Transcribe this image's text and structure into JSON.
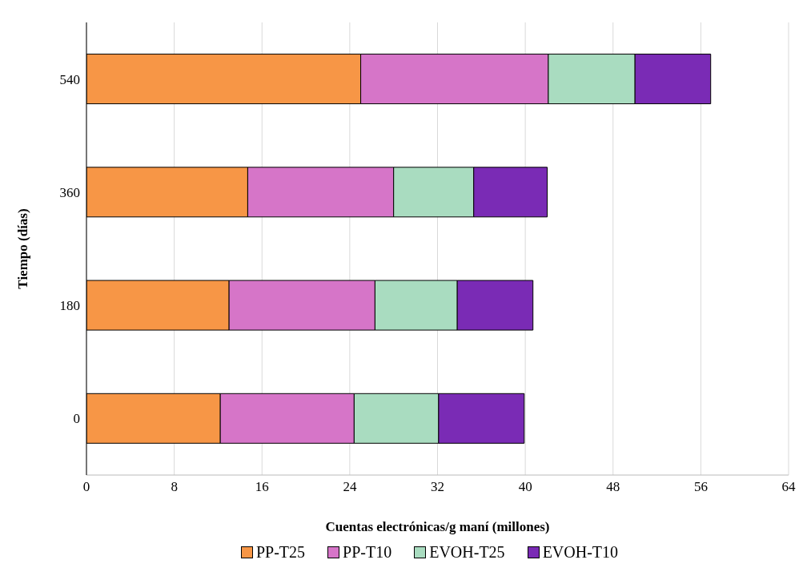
{
  "chart_data": {
    "type": "bar",
    "orientation": "horizontal",
    "stacked": true,
    "xlabel": "Cuentas electrónicas/g maní (millones)",
    "ylabel": "Tiempo (días)",
    "categories": [
      "540",
      "360",
      "180",
      "0"
    ],
    "series": [
      {
        "name": "PP-T25",
        "color": "#f79646",
        "values": [
          25.0,
          14.7,
          13.0,
          12.2
        ]
      },
      {
        "name": "PP-T10",
        "color": "#d675c8",
        "values": [
          17.1,
          13.3,
          13.3,
          12.2
        ]
      },
      {
        "name": "EVOH-T25",
        "color": "#a9dcc0",
        "values": [
          7.9,
          7.3,
          7.5,
          7.7
        ]
      },
      {
        "name": "EVOH-T10",
        "color": "#7a2bb5",
        "values": [
          6.9,
          6.7,
          6.9,
          7.8
        ]
      }
    ],
    "xlim": [
      0,
      64
    ],
    "xticks": [
      0,
      8,
      16,
      24,
      32,
      40,
      48,
      56,
      64
    ],
    "grid": "x",
    "legend": "bottom"
  }
}
